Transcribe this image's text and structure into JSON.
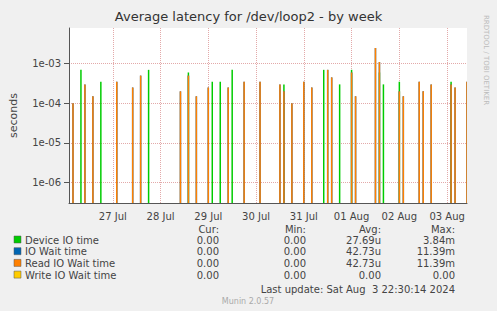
{
  "chart_data": {
    "type": "line",
    "title": "Average latency for /dev/loop2 - by week",
    "y_label": "seconds",
    "log": "y",
    "grid": true,
    "ylim": [
      3e-07,
      0.008
    ],
    "yticks": [
      {
        "value": 1e-06,
        "label": "1e-06"
      },
      {
        "value": 1e-05,
        "label": "1e-05"
      },
      {
        "value": 0.0001,
        "label": "1e-04"
      },
      {
        "value": 0.001,
        "label": "1e-03"
      }
    ],
    "categories": [
      null,
      null,
      null,
      null,
      null,
      null,
      null,
      null,
      null,
      null,
      null,
      "27 Jul",
      null,
      null,
      null,
      null,
      null,
      null,
      null,
      null,
      null,
      null,
      null,
      "28 Jul",
      null,
      null,
      null,
      null,
      null,
      null,
      null,
      null,
      null,
      null,
      null,
      "29 Jul",
      null,
      null,
      null,
      null,
      null,
      null,
      null,
      null,
      null,
      null,
      null,
      "30 Jul",
      null,
      null,
      null,
      null,
      null,
      null,
      null,
      null,
      null,
      null,
      null,
      "31 Jul",
      null,
      null,
      null,
      null,
      null,
      null,
      null,
      null,
      null,
      null,
      null,
      "01 Aug",
      null,
      null,
      null,
      null,
      null,
      null,
      null,
      null,
      null,
      null,
      null,
      "02 Aug",
      null,
      null,
      null,
      null,
      null,
      null,
      null,
      null,
      null,
      null,
      null,
      "03 Aug",
      null,
      null,
      null,
      null,
      null
    ],
    "stats_header": [
      "Cur:",
      "Min:",
      "Avg:",
      "Max:"
    ],
    "series": [
      {
        "name": "Device IO time",
        "color": "#00cc00",
        "stats": [
          "0.00",
          "0.00",
          "27.69u",
          "3.84m"
        ],
        "values": [
          null,
          null,
          null,
          0.0007,
          null,
          null,
          null,
          null,
          0.00035,
          null,
          null,
          null,
          null,
          null,
          null,
          null,
          null,
          null,
          null,
          null,
          0.0007,
          null,
          null,
          null,
          null,
          null,
          null,
          null,
          null,
          null,
          0.0006,
          null,
          null,
          null,
          null,
          null,
          0.00035,
          null,
          0.00035,
          null,
          null,
          0.0007,
          null,
          null,
          null,
          null,
          null,
          null,
          null,
          null,
          null,
          null,
          null,
          null,
          0.0003,
          null,
          null,
          null,
          null,
          null,
          null,
          null,
          null,
          null,
          0.0007,
          null,
          null,
          null,
          0.0003,
          null,
          null,
          0.0007,
          null,
          null,
          null,
          null,
          null,
          null,
          0.0006,
          0.0003,
          null,
          null,
          null,
          0.00035,
          null,
          null,
          null,
          null,
          null,
          null,
          null,
          null,
          null,
          null,
          null,
          null,
          0.00035,
          null,
          null,
          null,
          null
        ]
      },
      {
        "name": "IO Wait time",
        "color": "#0066b3",
        "stats": [
          "0.00",
          "0.00",
          "42.73u",
          "11.39m"
        ],
        "values": [
          null,
          0.0001,
          null,
          null,
          0.0003,
          null,
          0.00015,
          null,
          null,
          null,
          null,
          null,
          0.00035,
          null,
          null,
          null,
          0.00025,
          null,
          0.0005,
          null,
          null,
          null,
          null,
          null,
          null,
          null,
          null,
          null,
          0.0002,
          null,
          0.0005,
          null,
          0.00015,
          null,
          null,
          0.00025,
          null,
          null,
          null,
          null,
          0.00025,
          null,
          null,
          null,
          0.00035,
          null,
          null,
          null,
          0.00035,
          null,
          null,
          null,
          null,
          0.0003,
          0.0002,
          null,
          0.0001,
          null,
          null,
          0.00035,
          null,
          0.00025,
          null,
          null,
          null,
          0.0007,
          0.00045,
          null,
          null,
          null,
          null,
          0.0006,
          0.00015,
          null,
          null,
          null,
          null,
          0.0025,
          0.0011,
          null,
          null,
          null,
          null,
          0.0002,
          0.00015,
          null,
          null,
          null,
          0.00035,
          0.0002,
          null,
          0.0003,
          null,
          null,
          null,
          null,
          0.0003,
          0.00025,
          null,
          null,
          0.00035
        ]
      },
      {
        "name": "Read IO Wait time",
        "color": "#ff8000",
        "stats": [
          "0.00",
          "0.00",
          "42.73u",
          "11.39m"
        ],
        "values": [
          null,
          0.0001,
          null,
          null,
          0.0003,
          null,
          0.00015,
          null,
          null,
          null,
          null,
          null,
          0.00035,
          null,
          null,
          null,
          0.00025,
          null,
          0.0005,
          null,
          null,
          null,
          null,
          null,
          null,
          null,
          null,
          null,
          0.0002,
          null,
          0.0005,
          null,
          0.00015,
          null,
          null,
          0.00025,
          null,
          null,
          null,
          null,
          0.00025,
          null,
          null,
          null,
          0.00035,
          null,
          null,
          null,
          0.00035,
          null,
          null,
          null,
          null,
          0.0003,
          0.0002,
          null,
          0.0001,
          null,
          null,
          0.00035,
          null,
          0.00025,
          null,
          null,
          null,
          0.0007,
          0.00045,
          null,
          null,
          null,
          null,
          0.0006,
          0.00015,
          null,
          null,
          null,
          null,
          0.0025,
          0.0011,
          null,
          null,
          null,
          null,
          0.0002,
          0.00015,
          null,
          null,
          null,
          0.00035,
          0.0002,
          null,
          0.0003,
          null,
          null,
          null,
          null,
          0.0003,
          0.00025,
          null,
          null,
          0.00035
        ]
      },
      {
        "name": "Write IO Wait time",
        "color": "#ffcc00",
        "stats": [
          "0.00",
          "0.00",
          "0.00",
          "0.00"
        ],
        "values": [
          null,
          null,
          null,
          null,
          null,
          null,
          null,
          null,
          null,
          null,
          null,
          null,
          null,
          null,
          null,
          null,
          null,
          null,
          null,
          null,
          null,
          null,
          null,
          null,
          null,
          null,
          null,
          null,
          null,
          null,
          null,
          null,
          null,
          null,
          null,
          null,
          null,
          null,
          null,
          null,
          null,
          null,
          null,
          null,
          null,
          null,
          null,
          null,
          null,
          null,
          null,
          null,
          null,
          null,
          null,
          null,
          null,
          null,
          null,
          null,
          null,
          null,
          null,
          null,
          null,
          null,
          null,
          null,
          null,
          null,
          null,
          null,
          null,
          null,
          null,
          null,
          null,
          null,
          null,
          null,
          null,
          null,
          null,
          null,
          null,
          null,
          null,
          null,
          null,
          null,
          null,
          null,
          null,
          null,
          null,
          null,
          null,
          null,
          null,
          null,
          null
        ]
      }
    ],
    "side_text": "RRDTOOL / TOBI OETIKER",
    "footer": "Last update: Sat Aug  3 22:30:14 2024",
    "credit": "Munin 2.0.57"
  }
}
